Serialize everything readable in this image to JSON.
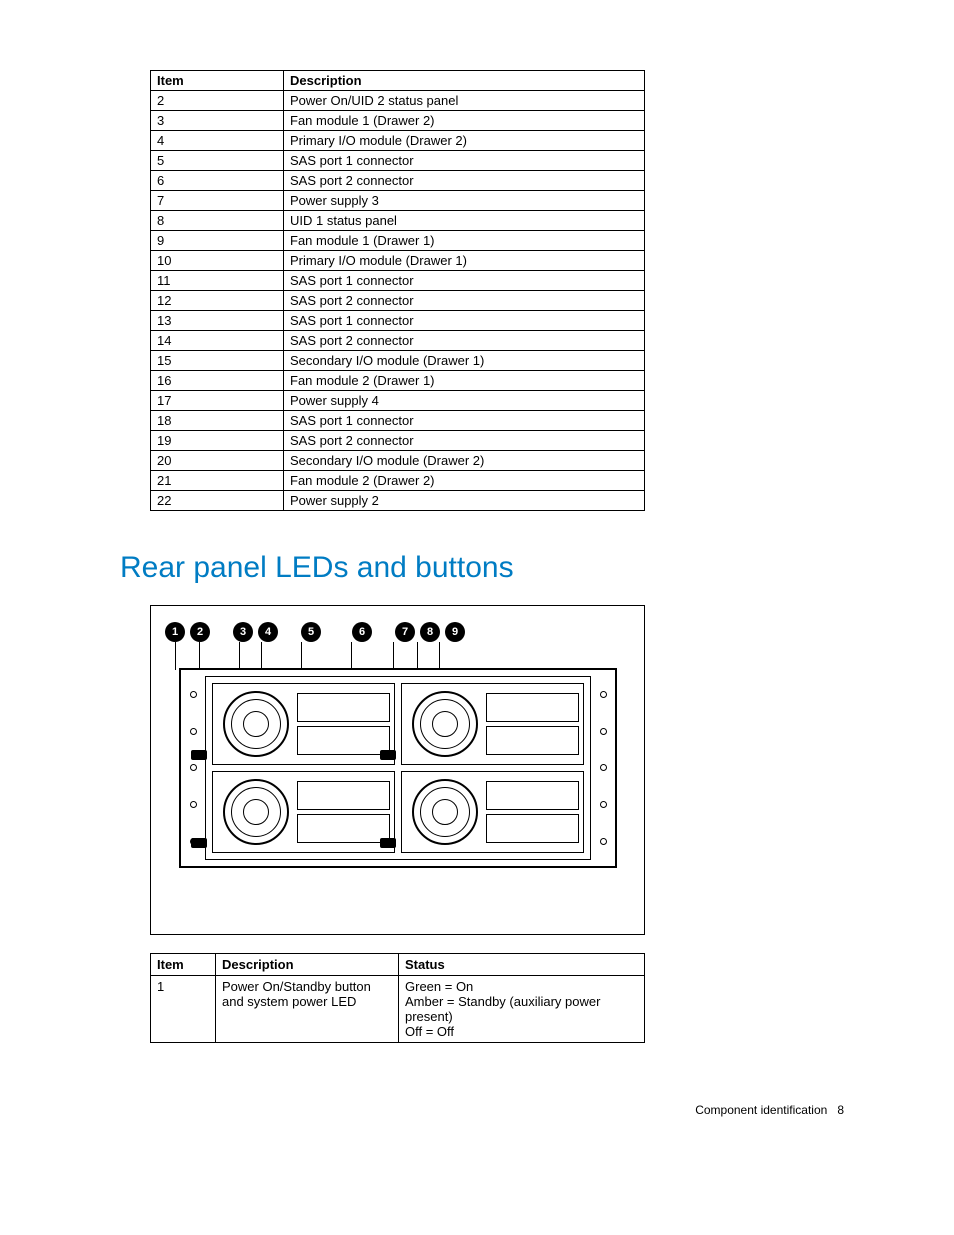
{
  "table1": {
    "headers": [
      "Item",
      "Description"
    ],
    "rows": [
      [
        "2",
        "Power On/UID 2 status panel"
      ],
      [
        "3",
        "Fan module 1 (Drawer 2)"
      ],
      [
        "4",
        "Primary I/O module (Drawer 2)"
      ],
      [
        "5",
        "SAS port 1 connector"
      ],
      [
        "6",
        "SAS port 2 connector"
      ],
      [
        "7",
        "Power supply 3"
      ],
      [
        "8",
        "UID 1 status panel"
      ],
      [
        "9",
        "Fan module 1 (Drawer 1)"
      ],
      [
        "10",
        "Primary I/O module (Drawer 1)"
      ],
      [
        "11",
        "SAS port 1 connector"
      ],
      [
        "12",
        "SAS port 2 connector"
      ],
      [
        "13",
        "SAS port 1 connector"
      ],
      [
        "14",
        "SAS port 2 connector"
      ],
      [
        "15",
        "Secondary I/O module (Drawer 1)"
      ],
      [
        "16",
        "Fan module 2 (Drawer 1)"
      ],
      [
        "17",
        "Power supply 4"
      ],
      [
        "18",
        "SAS port 1 connector"
      ],
      [
        "19",
        "SAS port 2 connector"
      ],
      [
        "20",
        "Secondary I/O module (Drawer 2)"
      ],
      [
        "21",
        "Fan module 2 (Drawer 2)"
      ],
      [
        "22",
        "Power supply 2"
      ]
    ]
  },
  "section_heading": "Rear panel LEDs and buttons",
  "diagram": {
    "callouts": [
      "1",
      "2",
      "3",
      "4",
      "5",
      "6",
      "7",
      "8",
      "9"
    ],
    "callout_gaps": [
      0,
      0,
      1,
      0,
      1,
      2,
      1,
      0,
      0
    ],
    "leader_x": [
      10,
      34,
      74,
      96,
      136,
      186,
      228,
      252,
      274
    ]
  },
  "table2": {
    "headers": [
      "Item",
      "Description",
      "Status"
    ],
    "rows": [
      {
        "item": "1",
        "desc": "Power On/Standby button and system power LED",
        "status": "Green = On\nAmber = Standby (auxiliary power present)\nOff = Off"
      }
    ]
  },
  "footer": {
    "text": "Component identification",
    "page": "8"
  }
}
